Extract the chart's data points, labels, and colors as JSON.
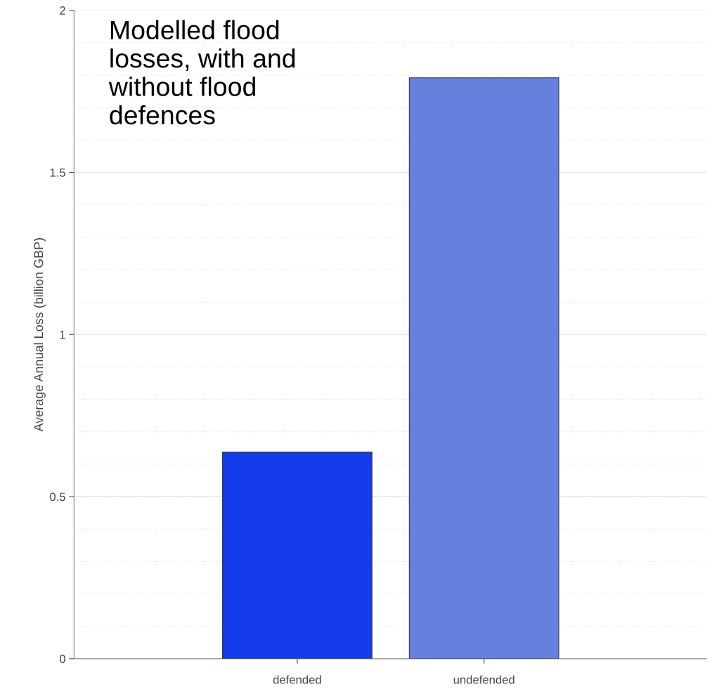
{
  "chart_data": {
    "type": "bar",
    "title": "Modelled flood\nlosses, with and\nwithout flood\ndefences",
    "ylabel": "Average Annual Loss (billion GBP)",
    "categories": [
      "defended",
      "undefended"
    ],
    "values": [
      0.637,
      1.792
    ],
    "colors": [
      "#143cea",
      "#6680de"
    ],
    "ylim": [
      0,
      2
    ],
    "yticks": [
      0,
      0.5,
      1,
      1.5,
      2
    ],
    "grid": true
  }
}
